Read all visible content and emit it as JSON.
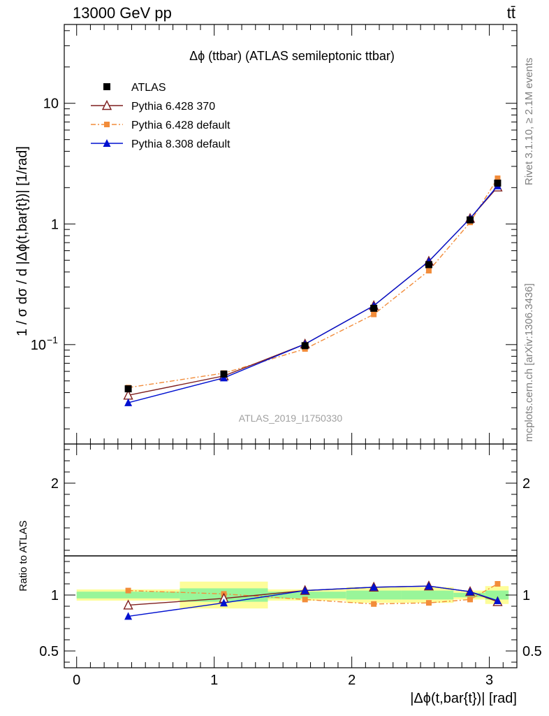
{
  "header": {
    "energy_label": "13000 GeV pp",
    "process_label": "tt̄"
  },
  "side_labels": {
    "rivet": "Rivet 3.1.10, ≥ 2.1M events",
    "mcplots": "mcplots.cern.ch [arXiv:1306.3436]"
  },
  "colors": {
    "atlas": "#000000",
    "py6_370": "#7f1f1f",
    "py6_default": "#f28c3a",
    "py8_default": "#0010d0",
    "band_inner": "#99f599",
    "band_outer": "#fdfd99"
  },
  "chart_data": [
    {
      "type": "line",
      "panel": "main",
      "title": "Δϕ (ttbar) (ATLAS semileptonic ttbar)",
      "watermark": "ATLAS_2019_I1750330",
      "ylabel": "1 / σ dσ / d |Δϕ(t,bar{t})| [1/rad]",
      "yscale": "log",
      "ylim": [
        0.015,
        45
      ],
      "xlim": [
        -0.09,
        3.2
      ],
      "yticks": [
        {
          "v": 0.1,
          "label": "10",
          "exp": "−1"
        },
        {
          "v": 1,
          "label": "1"
        },
        {
          "v": 10,
          "label": "10"
        }
      ],
      "legend_position": "top-left",
      "x": [
        0.375,
        1.07,
        1.66,
        2.16,
        2.56,
        2.86,
        3.06
      ],
      "series": [
        {
          "name": "ATLAS",
          "key": "atlas",
          "marker": "square",
          "values": [
            0.043,
            0.057,
            0.098,
            0.2,
            0.46,
            1.08,
            2.18
          ]
        },
        {
          "name": "Pythia 6.428 370",
          "key": "py6_370",
          "marker": "triangle-open",
          "values": [
            0.038,
            0.055,
            0.101,
            0.21,
            0.49,
            1.11,
            2.02
          ]
        },
        {
          "name": "Pythia 6.428 default",
          "key": "py6_default",
          "marker": "square-small",
          "dashed": true,
          "values": [
            0.044,
            0.058,
            0.092,
            0.178,
            0.41,
            1.03,
            2.39
          ]
        },
        {
          "name": "Pythia 8.308 default",
          "key": "py8_default",
          "marker": "triangle",
          "values": [
            0.033,
            0.053,
            0.101,
            0.21,
            0.49,
            1.11,
            2.07
          ]
        }
      ]
    },
    {
      "type": "line",
      "panel": "ratio",
      "ylabel": "Ratio to ATLAS",
      "xlabel": "|Δϕ(t,bar{t})| [rad]",
      "ylim": [
        0.35,
        2.35
      ],
      "xlim": [
        -0.09,
        3.2
      ],
      "xticks": [
        0,
        1,
        2,
        3
      ],
      "yticks": [
        {
          "v": 0.5,
          "label": "0.5"
        },
        {
          "v": 1,
          "label": "1"
        },
        {
          "v": 2,
          "label": "2"
        }
      ],
      "bins": [
        [
          0,
          0.75
        ],
        [
          0.75,
          1.39
        ],
        [
          1.39,
          1.96
        ],
        [
          1.96,
          2.36
        ],
        [
          2.36,
          2.74
        ],
        [
          2.74,
          2.97
        ],
        [
          2.97,
          3.14
        ]
      ],
      "band_outer": [
        0.05,
        0.12,
        0.05,
        0.07,
        0.07,
        0.04,
        0.08
      ],
      "band_inner": [
        0.03,
        0.06,
        0.03,
        0.04,
        0.04,
        0.02,
        0.04
      ],
      "x": [
        0.375,
        1.07,
        1.66,
        2.16,
        2.56,
        2.86,
        3.06
      ],
      "series": [
        {
          "name": "Pythia 6.428 370",
          "key": "py6_370",
          "marker": "triangle-open",
          "values": [
            0.91,
            0.97,
            1.04,
            1.07,
            1.08,
            1.03,
            0.94
          ]
        },
        {
          "name": "Pythia 6.428 default",
          "key": "py6_default",
          "marker": "square-small",
          "dashed": true,
          "values": [
            1.04,
            1.01,
            0.96,
            0.92,
            0.93,
            0.96,
            1.1
          ]
        },
        {
          "name": "Pythia 8.308 default",
          "key": "py8_default",
          "marker": "triangle",
          "values": [
            0.81,
            0.93,
            1.04,
            1.07,
            1.08,
            1.03,
            0.95
          ]
        }
      ]
    }
  ]
}
